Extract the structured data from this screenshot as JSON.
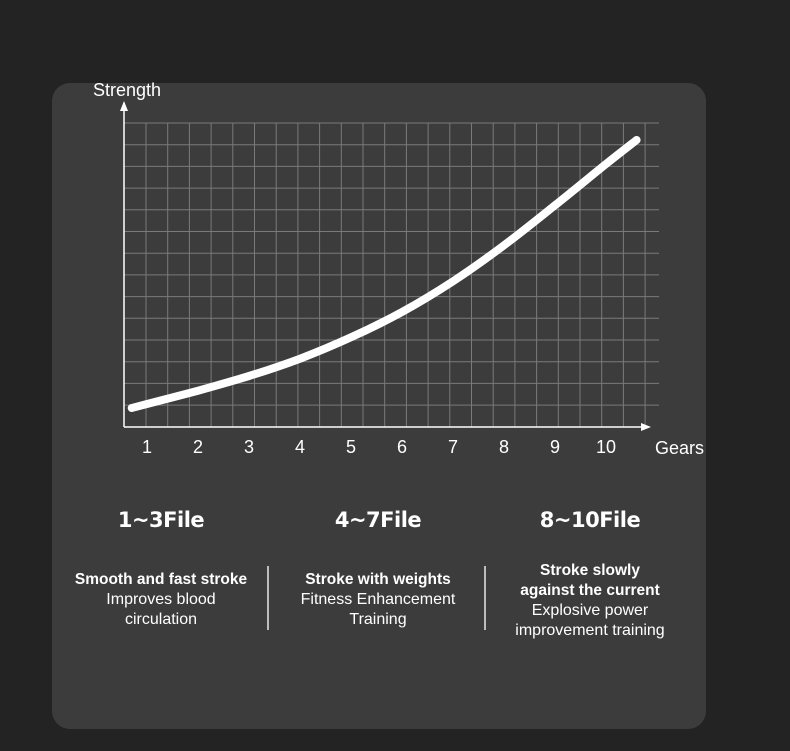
{
  "colors": {
    "background": "#242324",
    "card": "#3c3c3c",
    "grid": "#7a7a7a",
    "curve": "#ffffff",
    "text": "#ffffff"
  },
  "chart_data": {
    "type": "line",
    "xlabel": "Gears",
    "ylabel": "Strength",
    "x_ticks": [
      "1",
      "2",
      "3",
      "4",
      "5",
      "6",
      "7",
      "8",
      "9",
      "10"
    ],
    "y_ticks_labeled": false,
    "grid": true,
    "legend": "none",
    "xlim": [
      0.5,
      11
    ],
    "ylim": [
      0,
      10
    ],
    "series": [
      {
        "x": [
          0.7,
          1,
          2,
          3,
          4,
          5,
          6,
          7,
          8,
          9,
          10,
          10.6
        ],
        "values": [
          0.3,
          0.45,
          0.95,
          1.5,
          2.15,
          2.95,
          3.9,
          5.05,
          6.4,
          7.9,
          9.45,
          10.35
        ]
      }
    ]
  },
  "segments": [
    {
      "title": "1~3File",
      "strong": [
        "Smooth and fast stroke"
      ],
      "normal": [
        "Improves blood",
        "circulation"
      ]
    },
    {
      "title": "4~7File",
      "strong": [
        "Stroke with weights"
      ],
      "normal": [
        "Fitness Enhancement",
        "Training"
      ]
    },
    {
      "title": "8~10File",
      "strong": [
        "Stroke slowly",
        "against the current"
      ],
      "normal": [
        "Explosive power",
        "improvement training"
      ]
    }
  ]
}
